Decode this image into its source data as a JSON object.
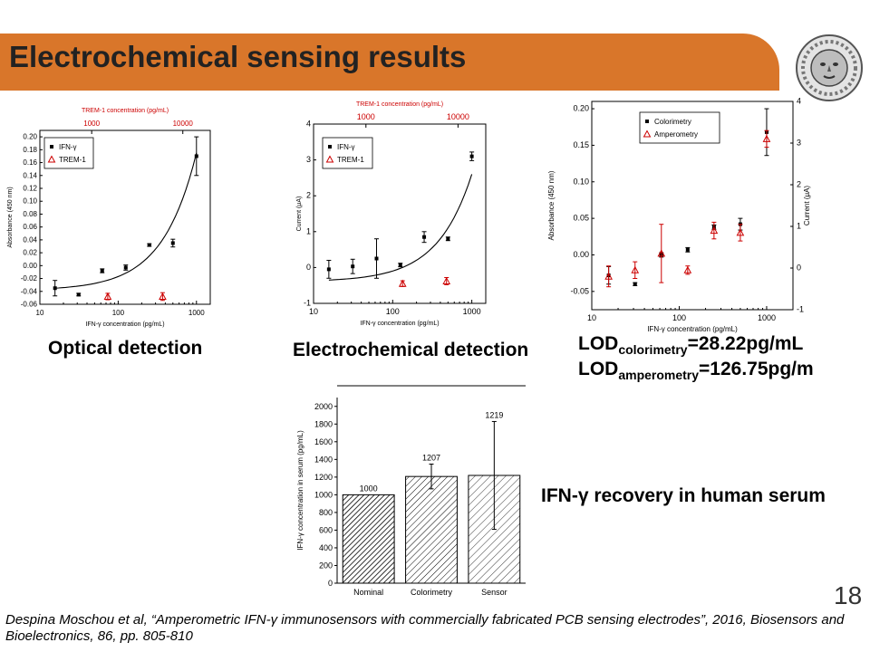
{
  "slide": {
    "title": "Electrochemical sensing results",
    "page_number": "18",
    "citation": "Despina Moschou et al, “Amperometric IFN-γ immunosensors with commercially fabricated PCB sensing electrodes”, 2016, Biosensors and Bioelectronics, 86, pp. 805-810",
    "logo_icon": "medusa-head-logo"
  },
  "captions": {
    "optical": "Optical detection",
    "electrochemical": "Electrochemical detection",
    "recovery": "IFN-γ recovery in human serum"
  },
  "lod": {
    "colorimetry_prefix": "LOD",
    "colorimetry_sub": "colorimetry",
    "colorimetry_value": "=28.22pg/mL",
    "amperometry_prefix": "LOD",
    "amperometry_sub": "amperometry",
    "amperometry_value": "=126.75pg/m"
  },
  "chart_data": [
    {
      "type": "scatter",
      "caption": "Optical detection",
      "xlabel": "IFN-γ concentration (pg/mL)",
      "x2label": "TREM-1 concentration (pg/mL)",
      "ylabel": "Absorbance (450 nm)",
      "xscale": "log",
      "xlim": [
        10,
        1500
      ],
      "x2lim": [
        270,
        20000
      ],
      "ylim": [
        -0.06,
        0.21
      ],
      "yticks": [
        -0.06,
        -0.04,
        -0.02,
        0.0,
        0.02,
        0.04,
        0.06,
        0.08,
        0.1,
        0.12,
        0.14,
        0.16,
        0.18,
        0.2
      ],
      "ytick_labels": [
        "-0.06",
        "-0.04",
        "-0.02",
        "0.00",
        "0.02",
        "0.04",
        "0.06",
        "0.08",
        "0.10",
        "0.12",
        "0.14",
        "0.16",
        "0.18",
        "0.20"
      ],
      "xticks": [
        10,
        100,
        1000
      ],
      "xtick_labels": [
        "10",
        "100",
        "1000"
      ],
      "x2ticks": [
        1000,
        10000
      ],
      "x2tick_labels": [
        "1000",
        "10000"
      ],
      "legend": "top-left",
      "series": [
        {
          "name": "IFN-γ",
          "marker": "square",
          "color": "#000000",
          "x": [
            15.6,
            31.25,
            62.5,
            125,
            250,
            500,
            1000
          ],
          "y": [
            -0.035,
            -0.045,
            -0.008,
            -0.003,
            0.032,
            0.035,
            0.17
          ],
          "err": [
            0.012,
            0.002,
            0.003,
            0.004,
            0.002,
            0.006,
            0.03
          ]
        },
        {
          "name": "TREM-1",
          "marker": "triangle",
          "color": "#cc0000",
          "axis": "top",
          "x": [
            1500,
            6000
          ],
          "y": [
            -0.048,
            -0.048
          ],
          "err": [
            0.005,
            0.006
          ]
        }
      ],
      "fit": {
        "color": "#000000",
        "x0": 15.6,
        "x1": 1000,
        "y0": -0.035,
        "y1": 0.175
      }
    },
    {
      "type": "scatter",
      "caption": "Electrochemical detection",
      "xlabel": "IFN-γ concentration (pg/mL)",
      "x2label": "TREM-1 concentration (pg/mL)",
      "ylabel": "Current (μA)",
      "xscale": "log",
      "xlim": [
        10,
        1500
      ],
      "x2lim": [
        270,
        20000
      ],
      "ylim": [
        -1,
        4
      ],
      "yticks": [
        -1,
        0,
        1,
        2,
        3,
        4
      ],
      "ytick_labels": [
        "-1",
        "0",
        "1",
        "2",
        "3",
        "4"
      ],
      "xticks": [
        10,
        100,
        1000
      ],
      "xtick_labels": [
        "10",
        "100",
        "1000"
      ],
      "x2ticks": [
        1000,
        10000
      ],
      "x2tick_labels": [
        "1000",
        "10000"
      ],
      "legend": "top-left",
      "series": [
        {
          "name": "IFN-γ",
          "marker": "square",
          "color": "#000000",
          "x": [
            15.6,
            31.25,
            62.5,
            125,
            250,
            500,
            1000
          ],
          "y": [
            -0.05,
            0.03,
            0.25,
            0.07,
            0.85,
            0.8,
            3.1
          ],
          "err": [
            0.25,
            0.2,
            0.55,
            0.05,
            0.15,
            0.05,
            0.12
          ]
        },
        {
          "name": "TREM-1",
          "marker": "triangle",
          "color": "#cc0000",
          "axis": "top",
          "x": [
            2500,
            7500
          ],
          "y": [
            -0.45,
            -0.38
          ],
          "err": [
            0.08,
            0.1
          ]
        }
      ],
      "fit": {
        "color": "#000000",
        "x0": 15.6,
        "x1": 1000,
        "y0": -0.35,
        "y1": 2.6
      }
    },
    {
      "type": "scatter",
      "caption": "",
      "xlabel": "IFN-γ concentration (pg/mL)",
      "ylabel": "Absorbance (450 nm)",
      "y2label": "Current (μA)",
      "xscale": "log",
      "xlim": [
        10,
        2000
      ],
      "ylim": [
        -0.075,
        0.21
      ],
      "y2lim": [
        -1,
        4
      ],
      "yticks": [
        -0.05,
        0.0,
        0.05,
        0.1,
        0.15,
        0.2
      ],
      "ytick_labels": [
        "-0.05",
        "0.00",
        "0.05",
        "0.10",
        "0.15",
        "0.20"
      ],
      "y2ticks": [
        -1,
        0,
        1,
        2,
        3,
        4
      ],
      "y2tick_labels": [
        "-1",
        "0",
        "1",
        "2",
        "3",
        "4"
      ],
      "xticks": [
        10,
        100,
        1000
      ],
      "xtick_labels": [
        "10",
        "100",
        "1000"
      ],
      "legend": "top-right",
      "series": [
        {
          "name": "Colorimetry",
          "marker": "square",
          "color": "#000000",
          "axis": "left",
          "x": [
            15.6,
            31.25,
            62.5,
            125,
            250,
            500,
            1000
          ],
          "y": [
            -0.028,
            -0.04,
            0.0,
            0.007,
            0.038,
            0.042,
            0.168
          ],
          "err": [
            0.012,
            0.002,
            0.003,
            0.003,
            0.003,
            0.008,
            0.032
          ]
        },
        {
          "name": "Amperometry",
          "marker": "triangle",
          "color": "#cc0000",
          "axis": "right",
          "x": [
            15.6,
            31.25,
            62.5,
            125,
            250,
            500,
            1000
          ],
          "y": [
            -0.2,
            -0.05,
            0.35,
            -0.05,
            0.9,
            0.85,
            3.1
          ],
          "err": [
            0.25,
            0.2,
            0.7,
            0.1,
            0.2,
            0.2,
            0.2
          ]
        }
      ]
    },
    {
      "type": "bar",
      "caption": "IFN-γ recovery in human serum",
      "categories": [
        "Nominal",
        "Colorimetry",
        "Sensor"
      ],
      "values": [
        1000,
        1207,
        1219
      ],
      "value_labels": [
        "1000",
        "1207",
        "1219"
      ],
      "err": [
        0,
        140,
        610
      ],
      "ylabel": "IFN-γ concentration in serum (pg/mL)",
      "ylim": [
        0,
        2100
      ],
      "yticks": [
        0,
        200,
        400,
        600,
        800,
        1000,
        1200,
        1400,
        1600,
        1800,
        2000
      ],
      "ytick_labels": [
        "0",
        "200",
        "400",
        "600",
        "800",
        "1000",
        "1200",
        "1400",
        "1600",
        "1800",
        "2000"
      ]
    }
  ]
}
